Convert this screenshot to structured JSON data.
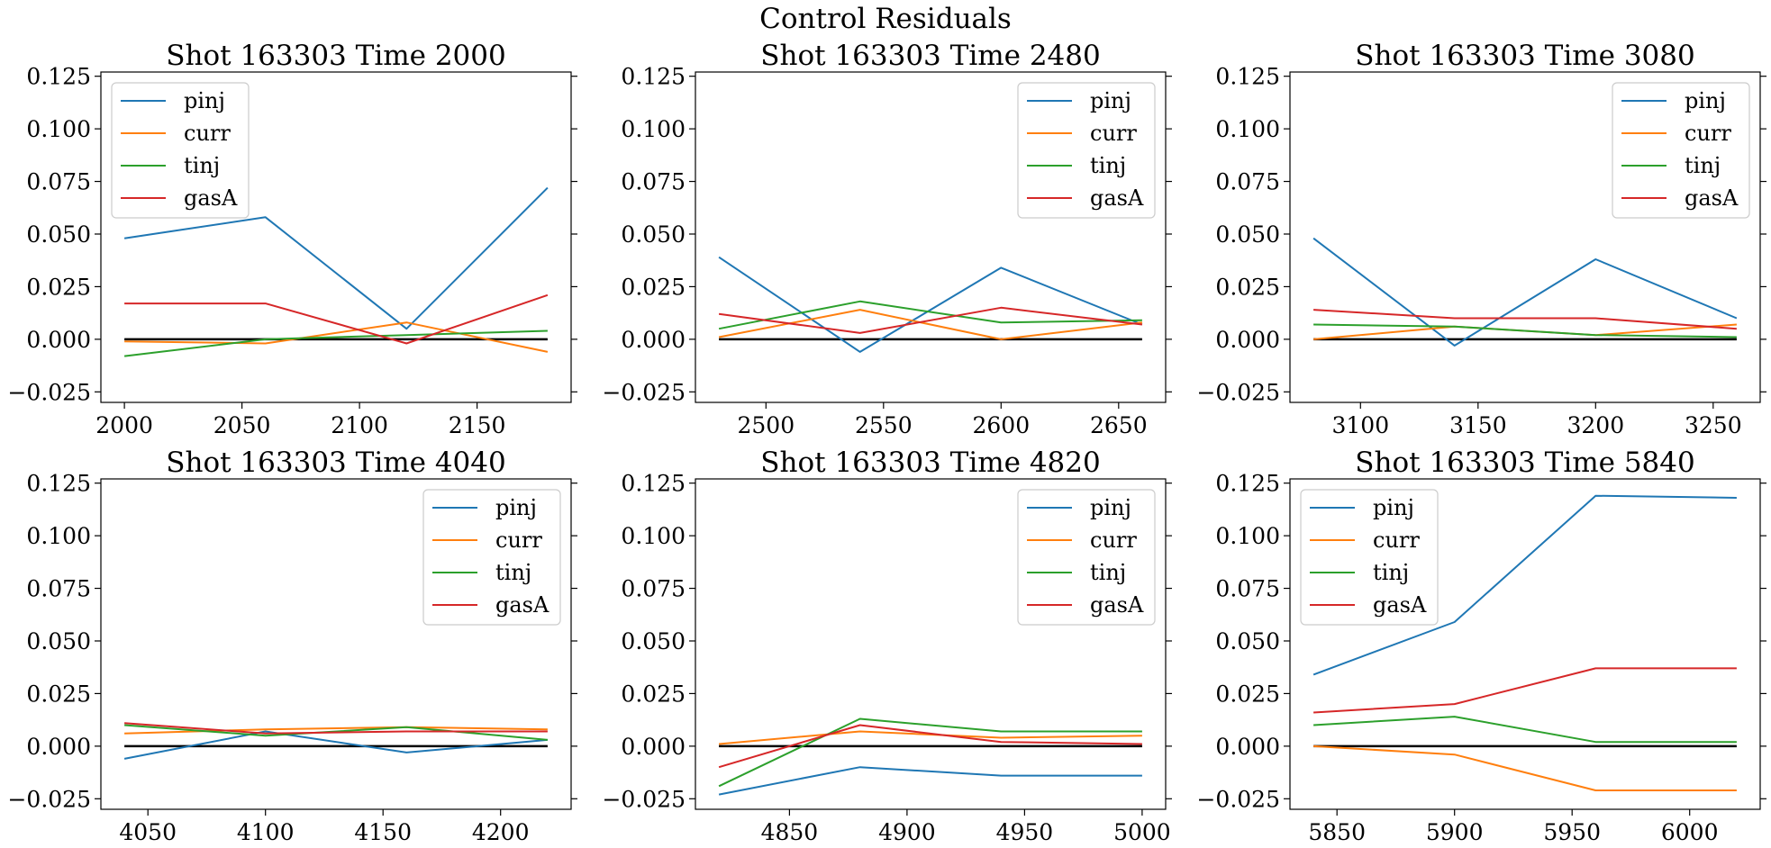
{
  "figure": {
    "suptitle": "Control Residuals"
  },
  "colors": {
    "pinj": "#1f77b4",
    "curr": "#ff7f0e",
    "tinj": "#2ca02c",
    "gasA": "#d62728",
    "zero": "#000000"
  },
  "chart_data": [
    {
      "type": "line",
      "title": "Shot 163303   Time 2000",
      "x": [
        2000,
        2060,
        2120,
        2180
      ],
      "xlim": [
        1990,
        2190
      ],
      "xticks": [
        2000,
        2050,
        2100,
        2150
      ],
      "ylim": [
        -0.03,
        0.127
      ],
      "yticks": [
        -0.025,
        0.0,
        0.025,
        0.05,
        0.075,
        0.1,
        0.125
      ],
      "legend": "upper-left",
      "series": [
        {
          "name": "pinj",
          "values": [
            0.048,
            0.058,
            0.005,
            0.072
          ]
        },
        {
          "name": "curr",
          "values": [
            -0.001,
            -0.002,
            0.008,
            -0.006
          ]
        },
        {
          "name": "tinj",
          "values": [
            -0.008,
            0.0,
            0.002,
            0.004
          ]
        },
        {
          "name": "gasA",
          "values": [
            0.017,
            0.017,
            -0.002,
            0.021
          ]
        }
      ]
    },
    {
      "type": "line",
      "title": "Shot 163303   Time 2480",
      "x": [
        2480,
        2540,
        2600,
        2660
      ],
      "xlim": [
        2470,
        2670
      ],
      "xticks": [
        2500,
        2550,
        2600,
        2650
      ],
      "ylim": [
        -0.03,
        0.127
      ],
      "yticks": [
        -0.025,
        0.0,
        0.025,
        0.05,
        0.075,
        0.1,
        0.125
      ],
      "legend": "upper-right",
      "series": [
        {
          "name": "pinj",
          "values": [
            0.039,
            -0.006,
            0.034,
            0.007
          ]
        },
        {
          "name": "curr",
          "values": [
            0.001,
            0.014,
            0.0,
            0.008
          ]
        },
        {
          "name": "tinj",
          "values": [
            0.005,
            0.018,
            0.008,
            0.009
          ]
        },
        {
          "name": "gasA",
          "values": [
            0.012,
            0.003,
            0.015,
            0.007
          ]
        }
      ]
    },
    {
      "type": "line",
      "title": "Shot 163303   Time 3080",
      "x": [
        3080,
        3140,
        3200,
        3260
      ],
      "xlim": [
        3070,
        3270
      ],
      "xticks": [
        3100,
        3150,
        3200,
        3250
      ],
      "ylim": [
        -0.03,
        0.127
      ],
      "yticks": [
        -0.025,
        0.0,
        0.025,
        0.05,
        0.075,
        0.1,
        0.125
      ],
      "legend": "upper-right",
      "series": [
        {
          "name": "pinj",
          "values": [
            0.048,
            -0.003,
            0.038,
            0.01
          ]
        },
        {
          "name": "curr",
          "values": [
            0.0,
            0.006,
            0.002,
            0.007
          ]
        },
        {
          "name": "tinj",
          "values": [
            0.007,
            0.006,
            0.002,
            0.001
          ]
        },
        {
          "name": "gasA",
          "values": [
            0.014,
            0.01,
            0.01,
            0.005
          ]
        }
      ]
    },
    {
      "type": "line",
      "title": "Shot 163303   Time 4040",
      "x": [
        4040,
        4100,
        4160,
        4220
      ],
      "xlim": [
        4030,
        4230
      ],
      "xticks": [
        4050,
        4100,
        4150,
        4200
      ],
      "ylim": [
        -0.03,
        0.127
      ],
      "yticks": [
        -0.025,
        0.0,
        0.025,
        0.05,
        0.075,
        0.1,
        0.125
      ],
      "legend": "upper-right",
      "series": [
        {
          "name": "pinj",
          "values": [
            -0.006,
            0.007,
            -0.003,
            0.003
          ]
        },
        {
          "name": "curr",
          "values": [
            0.006,
            0.008,
            0.009,
            0.008
          ]
        },
        {
          "name": "tinj",
          "values": [
            0.01,
            0.005,
            0.009,
            0.003
          ]
        },
        {
          "name": "gasA",
          "values": [
            0.011,
            0.006,
            0.007,
            0.007
          ]
        }
      ]
    },
    {
      "type": "line",
      "title": "Shot 163303   Time 4820",
      "x": [
        4820,
        4880,
        4940,
        5000
      ],
      "xlim": [
        4810,
        5010
      ],
      "xticks": [
        4850,
        4900,
        4950,
        5000
      ],
      "ylim": [
        -0.03,
        0.127
      ],
      "yticks": [
        -0.025,
        0.0,
        0.025,
        0.05,
        0.075,
        0.1,
        0.125
      ],
      "legend": "upper-right",
      "series": [
        {
          "name": "pinj",
          "values": [
            -0.023,
            -0.01,
            -0.014,
            -0.014
          ]
        },
        {
          "name": "curr",
          "values": [
            0.001,
            0.007,
            0.004,
            0.005
          ]
        },
        {
          "name": "tinj",
          "values": [
            -0.019,
            0.013,
            0.007,
            0.007
          ]
        },
        {
          "name": "gasA",
          "values": [
            -0.01,
            0.01,
            0.002,
            0.001
          ]
        }
      ]
    },
    {
      "type": "line",
      "title": "Shot 163303   Time 5840",
      "x": [
        5840,
        5900,
        5960,
        6020
      ],
      "xlim": [
        5830,
        6030
      ],
      "xticks": [
        5850,
        5900,
        5950,
        6000
      ],
      "ylim": [
        -0.03,
        0.127
      ],
      "yticks": [
        -0.025,
        0.0,
        0.025,
        0.05,
        0.075,
        0.1,
        0.125
      ],
      "legend": "upper-left",
      "series": [
        {
          "name": "pinj",
          "values": [
            0.034,
            0.059,
            0.119,
            0.118
          ]
        },
        {
          "name": "curr",
          "values": [
            0.0,
            -0.004,
            -0.021,
            -0.021
          ]
        },
        {
          "name": "tinj",
          "values": [
            0.01,
            0.014,
            0.002,
            0.002
          ]
        },
        {
          "name": "gasA",
          "values": [
            0.016,
            0.02,
            0.037,
            0.037
          ]
        }
      ]
    }
  ]
}
